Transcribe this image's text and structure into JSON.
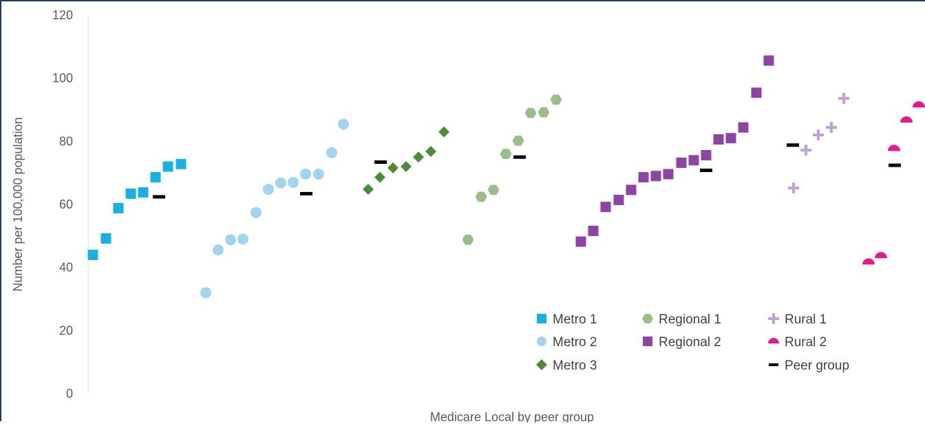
{
  "chart_data": {
    "type": "scatter",
    "title": "",
    "xlabel": "Medicare Local by peer group",
    "ylabel": "Number per 100,000 population",
    "ylim": [
      0,
      120
    ],
    "yticks": [
      0,
      20,
      40,
      60,
      80,
      100,
      120
    ],
    "grid": false,
    "legend_position": "bottom-right",
    "series": [
      {
        "name": "Metro 1",
        "marker": "square",
        "color": "#1ab0e0",
        "values": [
          44,
          49.2,
          58.8,
          63.4,
          63.8,
          68.6,
          72,
          72.8
        ]
      },
      {
        "name": "Metro 2",
        "marker": "circle",
        "color": "#a2d4f0",
        "values": [
          32,
          45.6,
          48.8,
          49,
          57.4,
          64.8,
          66.8,
          67,
          69.6,
          69.6,
          76.4,
          85.4
        ]
      },
      {
        "name": "Metro 3",
        "marker": "diamond",
        "color": "#4c8c34",
        "values": [
          64.8,
          68.6,
          71.6,
          72,
          75,
          76.8,
          83
        ]
      },
      {
        "name": "Regional 1",
        "marker": "hexagon",
        "color": "#9bbd8c",
        "values": [
          48.8,
          62.4,
          64.6,
          76,
          80.2,
          89,
          89.2,
          93.2
        ]
      },
      {
        "name": "Regional 2",
        "marker": "square",
        "color": "#8e44a4",
        "values": [
          48.2,
          51.6,
          59.2,
          61.4,
          64.6,
          68.6,
          69,
          69.6,
          73.2,
          74,
          75.6,
          80.6,
          81,
          84.4,
          95.4,
          105.6
        ]
      },
      {
        "name": "Rural 1",
        "marker": "plus",
        "color": "#c2a0d8",
        "values": [
          65.2,
          77.2,
          82,
          84.4,
          93.6
        ]
      },
      {
        "name": "Rural 2",
        "marker": "semicircle",
        "color": "#e4178c",
        "values": [
          41.6,
          43.6,
          77.6,
          86.6,
          91.4
        ]
      },
      {
        "name": "Peer group",
        "marker": "dash",
        "color": "#000000",
        "values": [
          62.4,
          63.4,
          73.4,
          75,
          70.8,
          78.8,
          72.4
        ]
      }
    ]
  }
}
